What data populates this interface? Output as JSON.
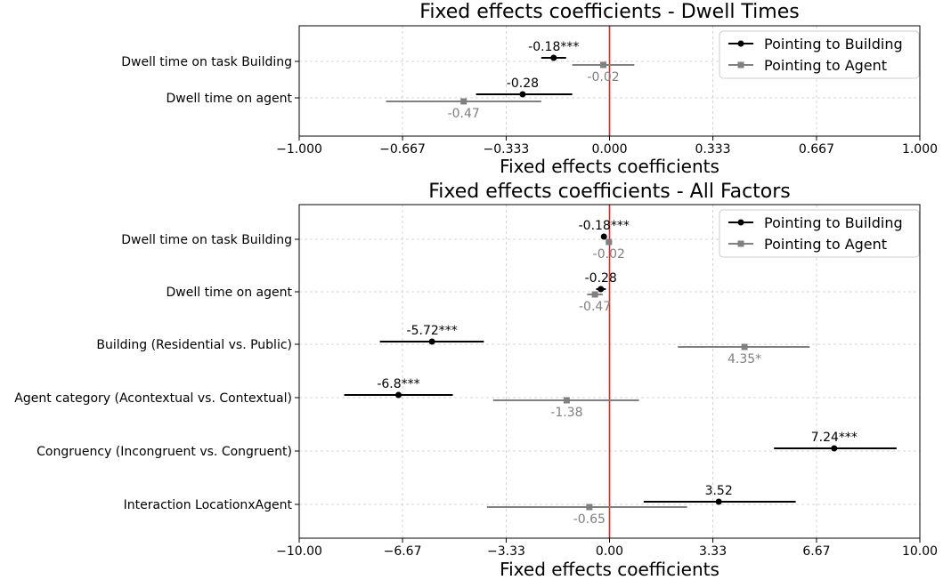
{
  "colors": {
    "building": "#000000",
    "agent": "#808080",
    "zero_line": "#e8231f",
    "grid": "#c8c8c8"
  },
  "chart_data": [
    {
      "type": "errorbar",
      "orientation": "horizontal",
      "title": "Fixed effects coefficients - Dwell Times",
      "xlabel": "Fixed effects coefficients",
      "ylabel": "",
      "xlim": [
        -1.0,
        1.0
      ],
      "xticks": [
        -1.0,
        -0.667,
        -0.333,
        0.0,
        0.333,
        0.667,
        1.0
      ],
      "xtick_labels": [
        "−1.000",
        "−0.667",
        "−0.333",
        "0.000",
        "0.333",
        "0.667",
        "1.000"
      ],
      "grid": true,
      "legend_position": "top-right",
      "categories": [
        "Dwell time on task Building",
        "Dwell time on agent"
      ],
      "series": [
        {
          "name": "Pointing to Building",
          "marker": "circle",
          "values": [
            -0.18,
            -0.28
          ],
          "ci_low": [
            -0.22,
            -0.43
          ],
          "ci_high": [
            -0.14,
            -0.12
          ],
          "labels": [
            "-0.18***",
            "-0.28"
          ]
        },
        {
          "name": "Pointing to Agent",
          "marker": "square",
          "values": [
            -0.02,
            -0.47
          ],
          "ci_low": [
            -0.12,
            -0.72
          ],
          "ci_high": [
            0.08,
            -0.22
          ],
          "labels": [
            "-0.02",
            "-0.47"
          ]
        }
      ]
    },
    {
      "type": "errorbar",
      "orientation": "horizontal",
      "title": "Fixed effects coefficients - All Factors",
      "xlabel": "Fixed effects coefficients",
      "ylabel": "",
      "xlim": [
        -10.0,
        10.0
      ],
      "xticks": [
        -10.0,
        -6.67,
        -3.33,
        0.0,
        3.33,
        6.67,
        10.0
      ],
      "xtick_labels": [
        "−10.00",
        "−6.67",
        "−3.33",
        "0.00",
        "3.33",
        "6.67",
        "10.00"
      ],
      "grid": true,
      "legend_position": "top-right",
      "categories": [
        "Dwell time on task Building",
        "Dwell time on agent",
        "Building (Residential vs. Public)",
        "Agent category (Acontextual vs. Contextual)",
        "Congruency (Incongruent vs. Congruent)",
        "Interaction LocationxAgent"
      ],
      "series": [
        {
          "name": "Pointing to Building",
          "marker": "circle",
          "values": [
            -0.18,
            -0.28,
            -5.72,
            -6.8,
            7.24,
            3.52
          ],
          "ci_low": [
            -0.22,
            -0.43,
            -7.4,
            -8.55,
            5.3,
            1.1
          ],
          "ci_high": [
            -0.14,
            -0.12,
            -4.05,
            -5.05,
            9.25,
            6.0
          ],
          "labels": [
            "-0.18***",
            "-0.28",
            "-5.72***",
            "-6.8***",
            "7.24***",
            "3.52"
          ]
        },
        {
          "name": "Pointing to Agent",
          "marker": "square",
          "values": [
            -0.02,
            -0.47,
            4.35,
            -1.38,
            null,
            -0.65
          ],
          "ci_low": [
            -0.12,
            -0.72,
            2.2,
            -3.75,
            null,
            -3.95
          ],
          "ci_high": [
            0.08,
            -0.22,
            6.45,
            0.95,
            null,
            2.5
          ],
          "labels": [
            "-0.02",
            "-0.47",
            "4.35*",
            "-1.38",
            "",
            "-0.65"
          ]
        }
      ]
    }
  ]
}
